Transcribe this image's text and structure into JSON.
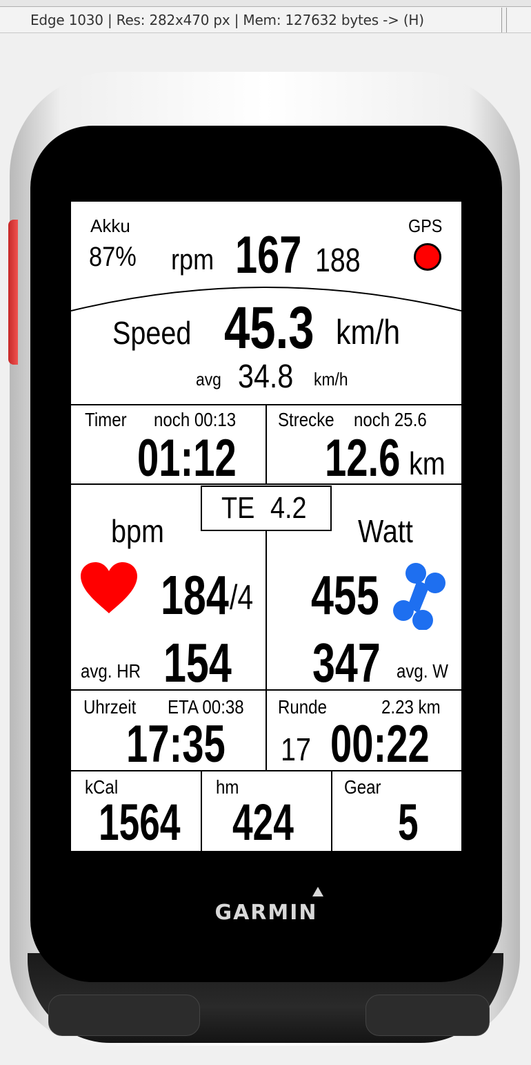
{
  "window": {
    "status_text": "Edge 1030 | Res: 282x470 px | Mem: 127632 bytes -> (H)"
  },
  "device": {
    "brand": "GARMIN"
  },
  "colors": {
    "gps_status": "#ff0000",
    "heart": "#ff0000",
    "power_icon": "#1e6ff0",
    "side_button": "#e53935"
  },
  "icons": {
    "gps_status": "gps-status-dot-icon",
    "heart_rate": "heart-icon",
    "power": "bone-power-icon"
  },
  "screen": {
    "battery": {
      "label": "Akku",
      "value": "87%"
    },
    "cadence": {
      "unit": "rpm",
      "value": "167",
      "max": "188"
    },
    "gps": {
      "label": "GPS"
    },
    "speed": {
      "label": "Speed",
      "value": "45.3",
      "unit": "km/h",
      "avg_label": "avg",
      "avg_value": "34.8",
      "avg_unit": "km/h"
    },
    "timer": {
      "label": "Timer",
      "remaining": "noch 00:13",
      "value": "01:12"
    },
    "distance": {
      "label": "Strecke",
      "remaining": "noch 25.6",
      "value": "12.6",
      "unit": "km"
    },
    "training_effect": {
      "label": "TE",
      "value": "4.2"
    },
    "heart_rate": {
      "label": "bpm",
      "value": "184",
      "zone": "/4",
      "avg_label": "avg. HR",
      "avg_value": "154"
    },
    "power": {
      "label": "Watt",
      "value": "455",
      "avg_value": "347",
      "avg_label": "avg. W"
    },
    "clock": {
      "label": "Uhrzeit",
      "eta": "ETA 00:38",
      "value": "17:35"
    },
    "lap": {
      "label": "Runde",
      "distance": "2.23 km",
      "number": "17",
      "time": "00:22"
    },
    "calories": {
      "label": "kCal",
      "value": "1564"
    },
    "elevation": {
      "label": "hm",
      "value": "424"
    },
    "gear": {
      "label": "Gear",
      "value": "5"
    }
  }
}
